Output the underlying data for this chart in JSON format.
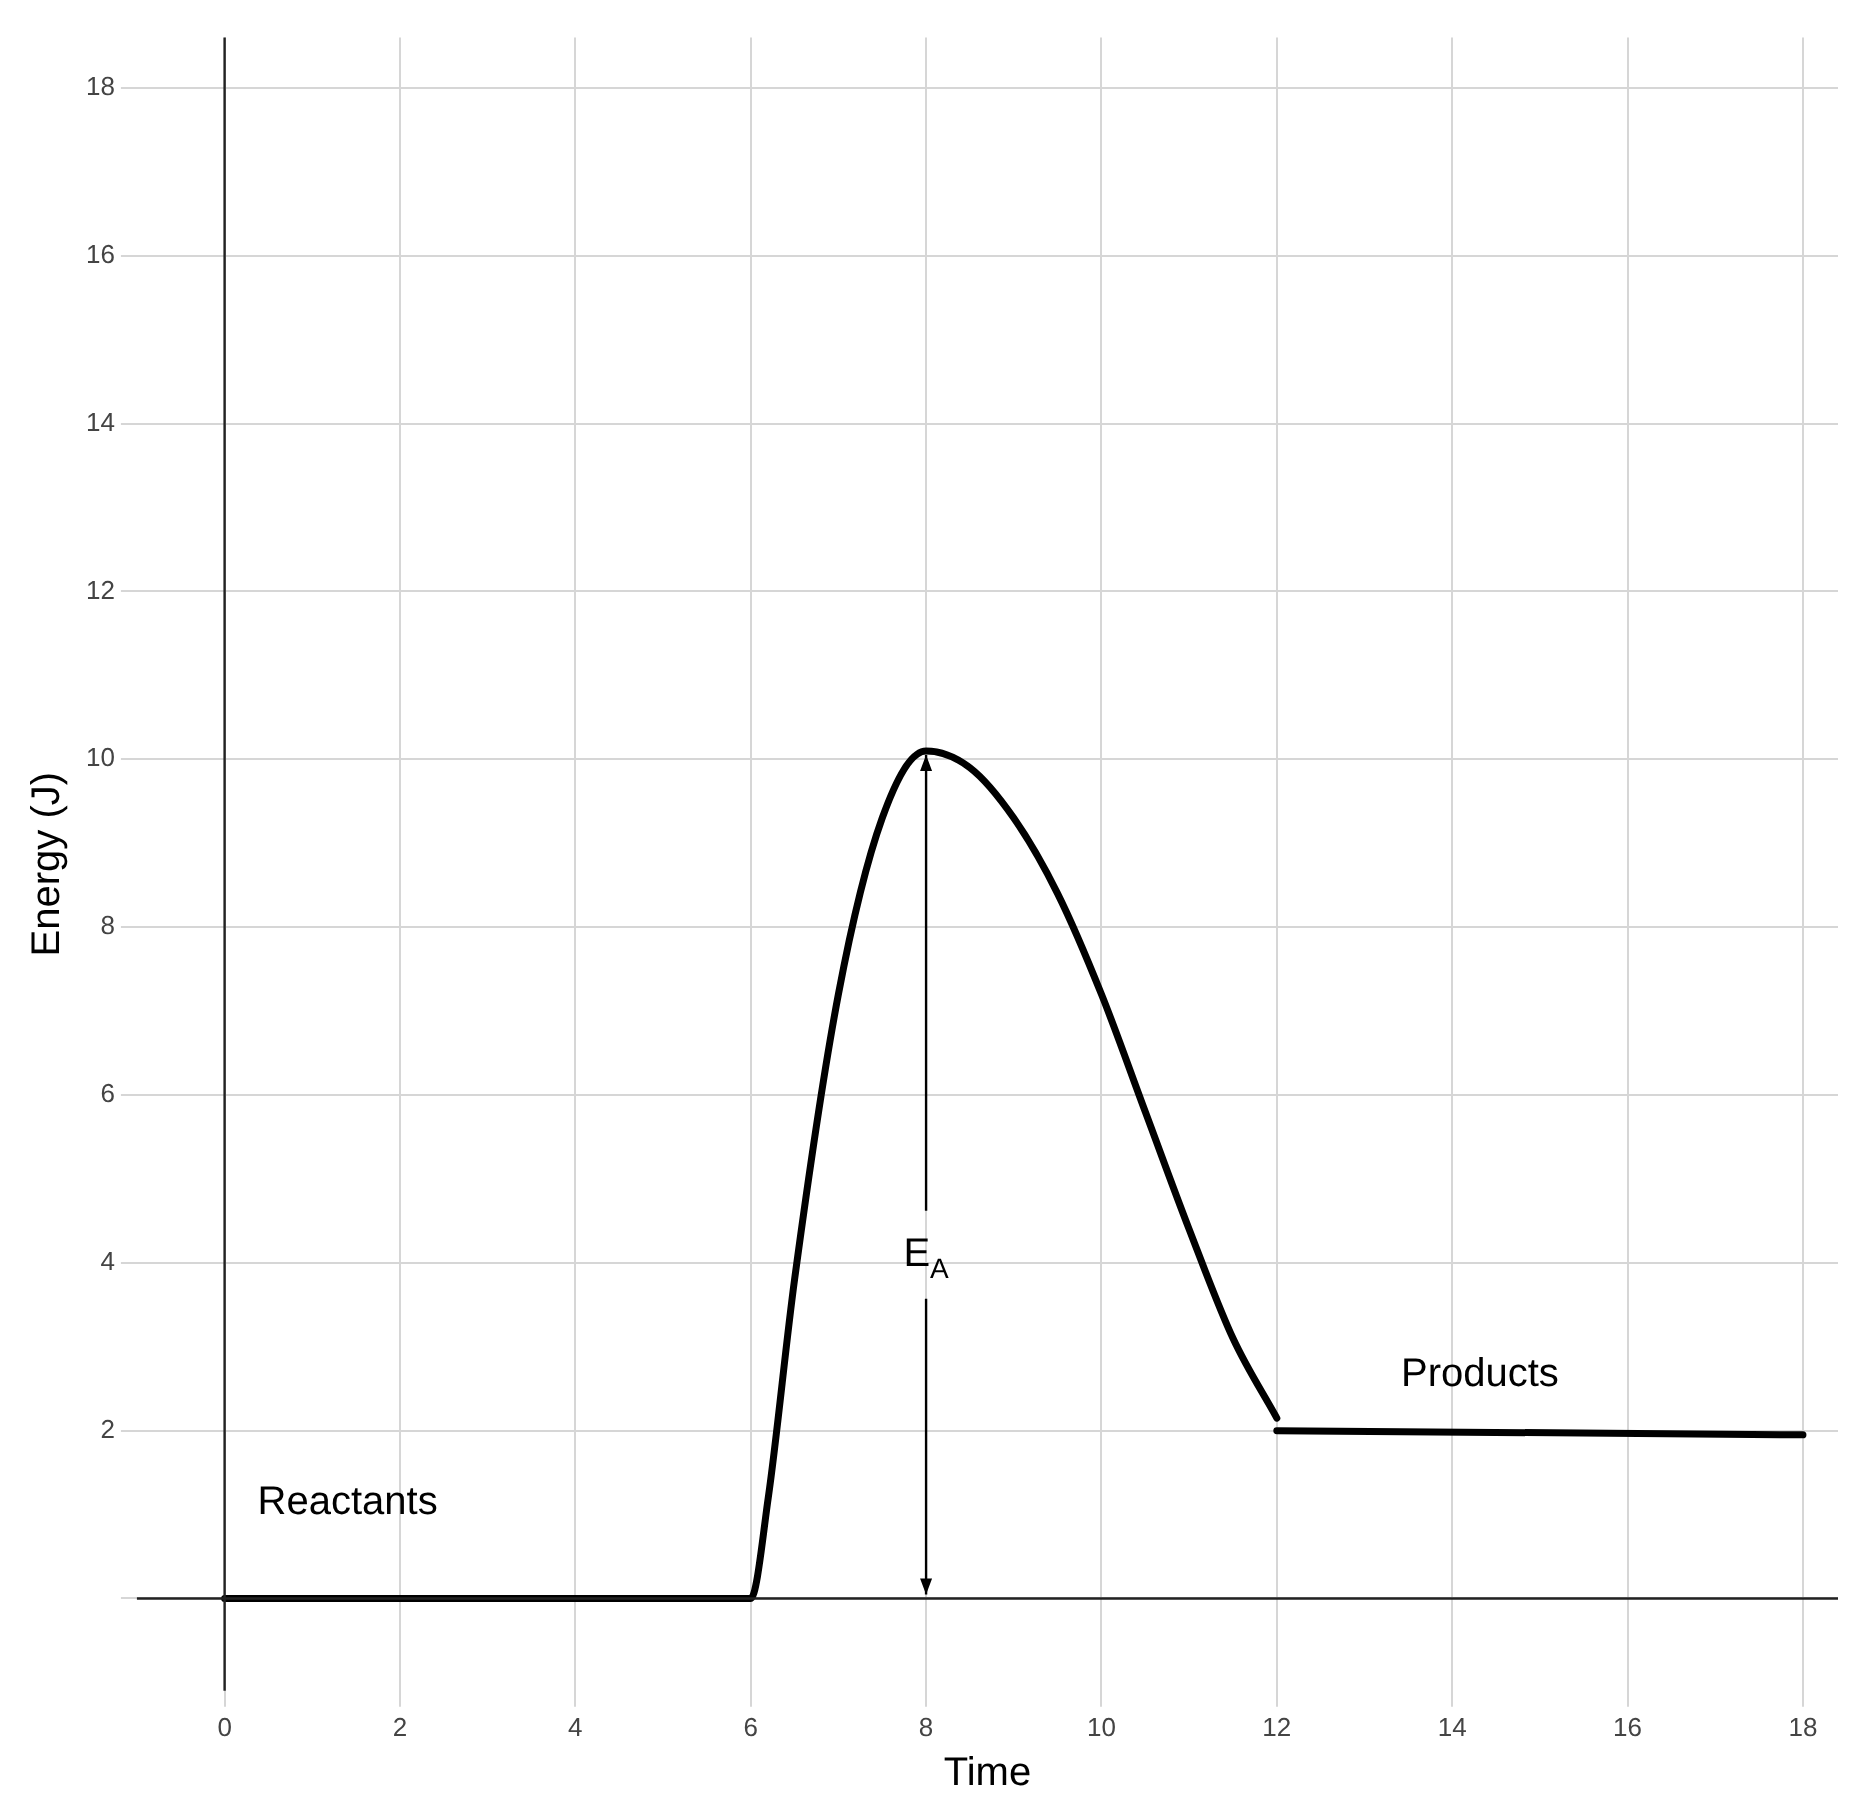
{
  "chart_data": {
    "type": "line",
    "xlabel": "Time",
    "ylabel": "Energy (J)",
    "xlim": [
      -1,
      18.4
    ],
    "ylim": [
      -1.1,
      18.6
    ],
    "xticks": [
      0,
      2,
      4,
      6,
      8,
      10,
      12,
      14,
      16,
      18
    ],
    "yticks": [
      {
        "value": 0,
        "label": null
      },
      2,
      4,
      6,
      8,
      10,
      12,
      14,
      16,
      18
    ],
    "grid": true,
    "legend": false,
    "marker": "none",
    "line_style": "solid",
    "series": [
      {
        "color": "#000000",
        "x": [
          0,
          6,
          6.2,
          6.5,
          7,
          7.5,
          8,
          8.5,
          9,
          9.5,
          10,
          10.5,
          11,
          11.5,
          12
        ],
        "values": [
          0,
          0,
          1.2,
          3.8,
          7.2,
          9.3,
          10.1,
          9.9,
          9.3,
          8.4,
          7.2,
          5.8,
          4.4,
          3.1,
          2.15
        ]
      },
      {
        "color": "#000000",
        "x": [
          12,
          18
        ],
        "values": [
          2,
          1.95
        ]
      }
    ],
    "annotations": [
      "Reactants",
      "Products",
      {
        "text": "E$_{A}$",
        "x": 8,
        "y": 10.1
      }
    ]
  }
}
